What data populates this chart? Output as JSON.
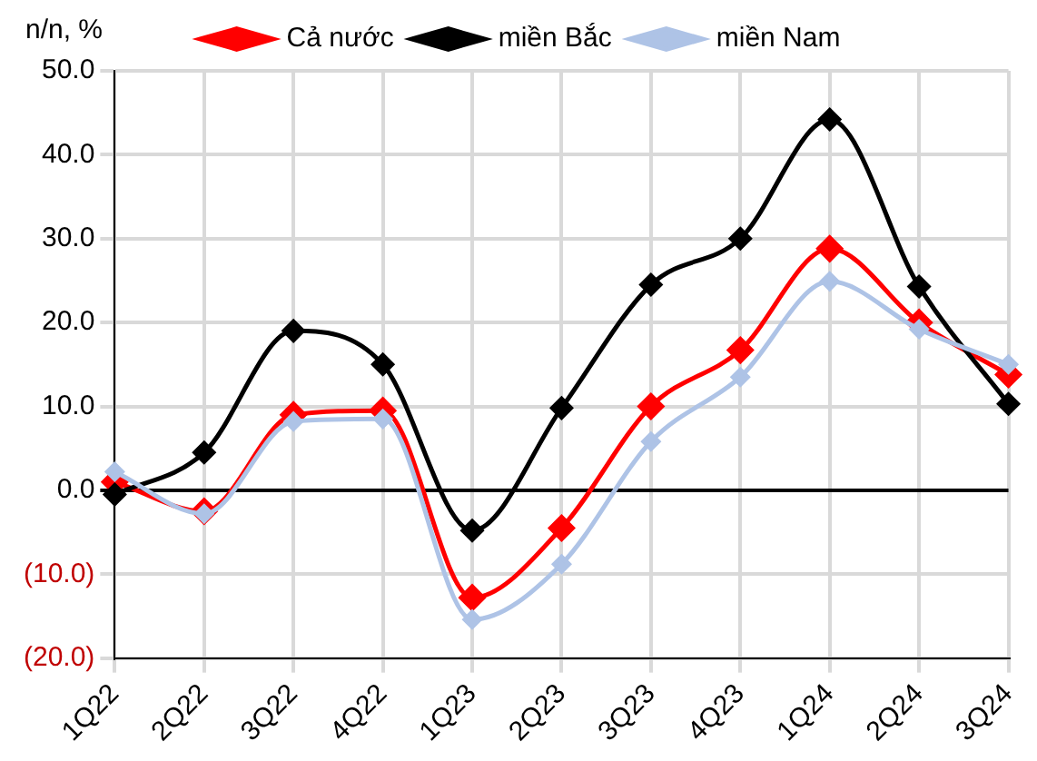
{
  "chart_data": {
    "type": "line",
    "ylabel": "n/n, %",
    "categories": [
      "1Q22",
      "2Q22",
      "3Q22",
      "4Q22",
      "1Q23",
      "2Q23",
      "3Q23",
      "4Q23",
      "1Q24",
      "2Q24",
      "3Q24"
    ],
    "series": [
      {
        "name": "Cả nước",
        "color": "#ff0000",
        "values": [
          1.0,
          -2.5,
          9.0,
          9.5,
          -12.8,
          -4.5,
          10.0,
          16.7,
          28.8,
          20.0,
          13.8
        ]
      },
      {
        "name": "miền Bắc",
        "color": "#000000",
        "values": [
          -0.5,
          4.5,
          19.0,
          15.0,
          -4.8,
          9.8,
          24.5,
          30.0,
          44.2,
          24.3,
          10.3
        ]
      },
      {
        "name": "miền Nam",
        "color": "#aec3e6",
        "values": [
          2.2,
          -2.8,
          8.2,
          8.5,
          -15.4,
          -8.8,
          5.8,
          13.5,
          24.9,
          19.2,
          15.0
        ]
      }
    ],
    "ylim": [
      -20,
      50
    ],
    "yticks": [
      {
        "value": -20,
        "label": "(20.0)"
      },
      {
        "value": -10,
        "label": "(10.0)"
      },
      {
        "value": 0,
        "label": "0.0"
      },
      {
        "value": 10,
        "label": "10.0"
      },
      {
        "value": 20,
        "label": "20.0"
      },
      {
        "value": 30,
        "label": "30.0"
      },
      {
        "value": 40,
        "label": "40.0"
      },
      {
        "value": 50,
        "label": "50.0"
      }
    ],
    "grid": true,
    "legend": "top",
    "marker": "diamond",
    "line_style": "solid"
  }
}
